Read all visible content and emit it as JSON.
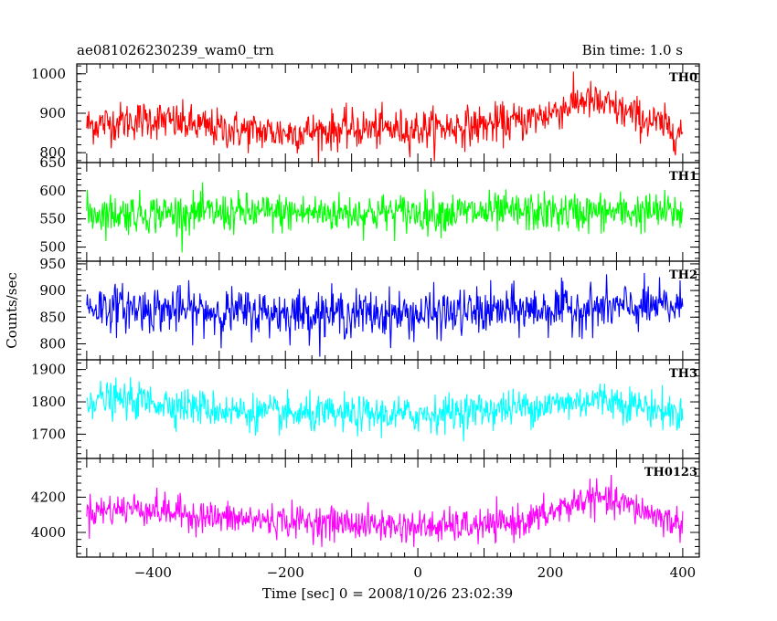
{
  "header": {
    "title_left": "ae081026230239_wam0_trn",
    "title_right": "Bin time: 1.0 s"
  },
  "chart_data": {
    "type": "line",
    "xlabel": "Time [sec] 0 = 2008/10/26 23:02:39",
    "ylabel": "Counts/sec",
    "xlim": [
      -515,
      425
    ],
    "x_range": [
      -500,
      400
    ],
    "bin_time_s": 1.0,
    "x_ticks": [
      -400,
      -200,
      0,
      200,
      400
    ],
    "x_tick_labels": [
      "−400",
      "−200",
      "0",
      "200",
      "400"
    ],
    "panels": [
      {
        "name": "TH0",
        "color": "#ff0000",
        "ylim": [
          775,
          1025
        ],
        "y_ticks": [
          800,
          900,
          1000
        ],
        "y_tick_labels": [
          "800",
          "900",
          "1000"
        ],
        "baseline": [
          [
            -500,
            870
          ],
          [
            -440,
            880
          ],
          [
            -400,
            885
          ],
          [
            -300,
            860
          ],
          [
            -200,
            850
          ],
          [
            -100,
            860
          ],
          [
            0,
            860
          ],
          [
            100,
            870
          ],
          [
            160,
            880
          ],
          [
            200,
            900
          ],
          [
            250,
            935
          ],
          [
            300,
            910
          ],
          [
            350,
            880
          ],
          [
            400,
            850
          ]
        ],
        "noise": 40
      },
      {
        "name": "TH1",
        "color": "#00ff00",
        "ylim": [
          475,
          650
        ],
        "y_ticks": [
          500,
          550,
          600,
          650
        ],
        "y_tick_labels": [
          "500",
          "550",
          "600",
          "650"
        ],
        "baseline": [
          [
            -500,
            560
          ],
          [
            400,
            562
          ]
        ],
        "noise": 28
      },
      {
        "name": "TH2",
        "color": "#0000ff",
        "ylim": [
          770,
          955
        ],
        "y_ticks": [
          800,
          850,
          900,
          950
        ],
        "y_tick_labels": [
          "800",
          "850",
          "900",
          "950"
        ],
        "baseline": [
          [
            -500,
            870
          ],
          [
            -300,
            860
          ],
          [
            0,
            855
          ],
          [
            200,
            865
          ],
          [
            400,
            870
          ]
        ],
        "noise": 35
      },
      {
        "name": "TH3",
        "color": "#00ffff",
        "ylim": [
          1625,
          1930
        ],
        "y_ticks": [
          1700,
          1800,
          1900
        ],
        "y_tick_labels": [
          "1700",
          "1800",
          "1900"
        ],
        "baseline": [
          [
            -500,
            1810
          ],
          [
            -400,
            1800
          ],
          [
            -300,
            1775
          ],
          [
            -200,
            1760
          ],
          [
            0,
            1760
          ],
          [
            200,
            1790
          ],
          [
            280,
            1810
          ],
          [
            400,
            1760
          ]
        ],
        "noise": 45
      },
      {
        "name": "TH0123",
        "color": "#ff00ff",
        "ylim": [
          3860,
          4420
        ],
        "y_ticks": [
          4000,
          4200
        ],
        "y_tick_labels": [
          "4000",
          "4200"
        ],
        "baseline": [
          [
            -500,
            4120
          ],
          [
            -420,
            4140
          ],
          [
            -300,
            4080
          ],
          [
            -100,
            4050
          ],
          [
            0,
            4030
          ],
          [
            120,
            4040
          ],
          [
            180,
            4080
          ],
          [
            260,
            4200
          ],
          [
            320,
            4150
          ],
          [
            400,
            4040
          ]
        ],
        "noise": 75
      }
    ]
  }
}
